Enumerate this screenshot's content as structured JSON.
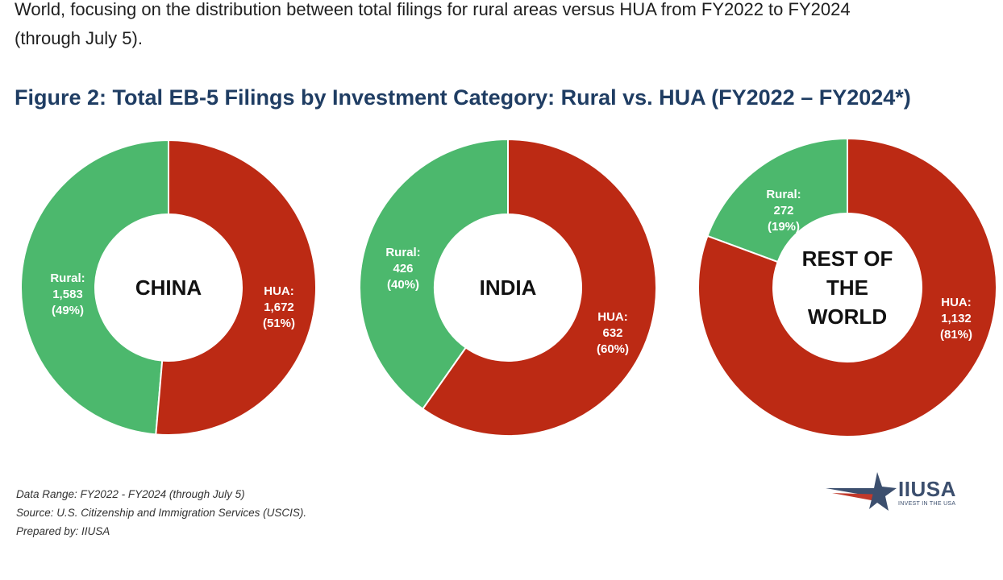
{
  "intro": {
    "line1": "World, focusing on the distribution between total filings for rural areas versus HUA from FY2022 to FY2024",
    "line2": "(through July 5)."
  },
  "figure_title": "Figure 2: Total EB-5 Filings by Investment Category: Rural vs. HUA (FY2022 – FY2024*)",
  "colors": {
    "rural": "#4cb86d",
    "hua": "#bc2a14"
  },
  "chart_data": [
    {
      "type": "pie",
      "center_label": [
        "CHINA"
      ],
      "slices": [
        {
          "name": "Rural",
          "value": 1583,
          "label": [
            "Rural:",
            "1,583",
            "(49%)"
          ]
        },
        {
          "name": "HUA",
          "value": 1672,
          "label": [
            "HUA:",
            "1,672",
            "(51%)"
          ]
        }
      ]
    },
    {
      "type": "pie",
      "center_label": [
        "INDIA"
      ],
      "slices": [
        {
          "name": "Rural",
          "value": 426,
          "label": [
            "Rural:",
            "426",
            "(40%)"
          ]
        },
        {
          "name": "HUA",
          "value": 632,
          "label": [
            "HUA:",
            "632",
            "(60%)"
          ]
        }
      ]
    },
    {
      "type": "pie",
      "center_label": [
        "REST OF",
        "THE",
        "WORLD"
      ],
      "slices": [
        {
          "name": "Rural",
          "value": 272,
          "label": [
            "Rural:",
            "272",
            "(19%)"
          ]
        },
        {
          "name": "HUA",
          "value": 1132,
          "label": [
            "HUA:",
            "1,132",
            "(81%)"
          ]
        }
      ]
    }
  ],
  "footer": {
    "line1": "Data Range: FY2022 - FY2024 (through July 5)",
    "line2": "Source: U.S. Citizenship and Immigration Services (USCIS).",
    "line3": "Prepared by: IIUSA"
  },
  "logo": {
    "name": "IIUSA",
    "tagline": "INVEST IN THE USA"
  }
}
